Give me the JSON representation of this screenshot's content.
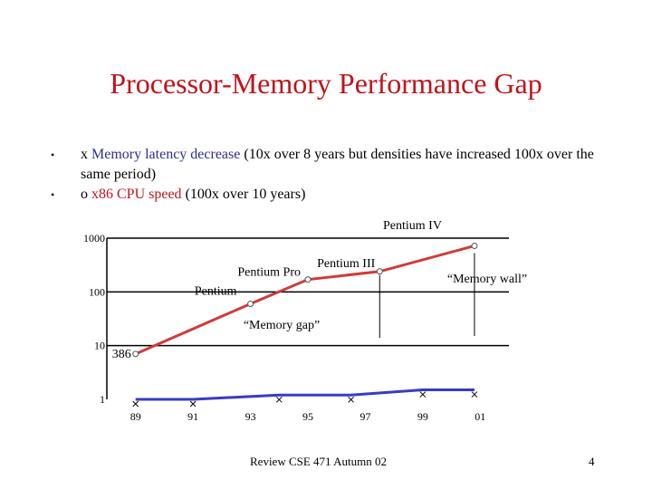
{
  "slide": {
    "title": "Processor-Memory Performance Gap",
    "bullets": [
      {
        "marker": "•",
        "symbol": "x",
        "highlight": "Memory latency decrease",
        "rest": "(10x over 8 years but densities have increased 100x over the same period)"
      },
      {
        "marker": "•",
        "symbol": "o",
        "highlight": "x86 CPU speed",
        "rest": "(100x over 10 years)"
      }
    ],
    "footer": "Review CSE 471 Autumn 02",
    "page_number": "4"
  },
  "colors": {
    "title": "#c0141b",
    "highlight_blue": "#2b2f8f",
    "highlight_red": "#c0141b",
    "cpu_line": "#d03a3a",
    "memory_line": "#3a3ac8"
  },
  "chart_data": {
    "type": "line",
    "yscale": "log",
    "ylim": [
      1,
      1000
    ],
    "y_ticks": [
      "1000",
      "100",
      "10",
      "1"
    ],
    "x_ticks": [
      "89",
      "91",
      "93",
      "95",
      "97",
      "99",
      "01"
    ],
    "series": [
      {
        "name": "x86 CPU speed",
        "marker": "o",
        "color": "#d03a3a",
        "points": [
          {
            "x": 1989,
            "y": 7
          },
          {
            "x": 1993,
            "y": 60
          },
          {
            "x": 1995,
            "y": 170
          },
          {
            "x": 1997.5,
            "y": 240
          },
          {
            "x": 2000.8,
            "y": 720
          }
        ]
      },
      {
        "name": "Memory latency decrease",
        "marker": "x",
        "color": "#3a3ac8",
        "points": [
          {
            "x": 1989,
            "y": 1
          },
          {
            "x": 1991,
            "y": 1
          },
          {
            "x": 1994,
            "y": 1.2
          },
          {
            "x": 1996.5,
            "y": 1.2
          },
          {
            "x": 1999,
            "y": 1.5
          },
          {
            "x": 2000.8,
            "y": 1.5
          }
        ]
      }
    ],
    "point_labels": [
      {
        "series": 0,
        "point": 0,
        "text": "386"
      },
      {
        "series": 0,
        "point": 1,
        "text": "Pentium"
      },
      {
        "series": 0,
        "point": 2,
        "text": "Pentium Pro"
      },
      {
        "series": 0,
        "point": 3,
        "text": "Pentium III"
      },
      {
        "series": 0,
        "point": 4,
        "text": "Pentium IV"
      }
    ],
    "annotations": [
      "“Memory gap”",
      "“Memory wall”"
    ]
  }
}
